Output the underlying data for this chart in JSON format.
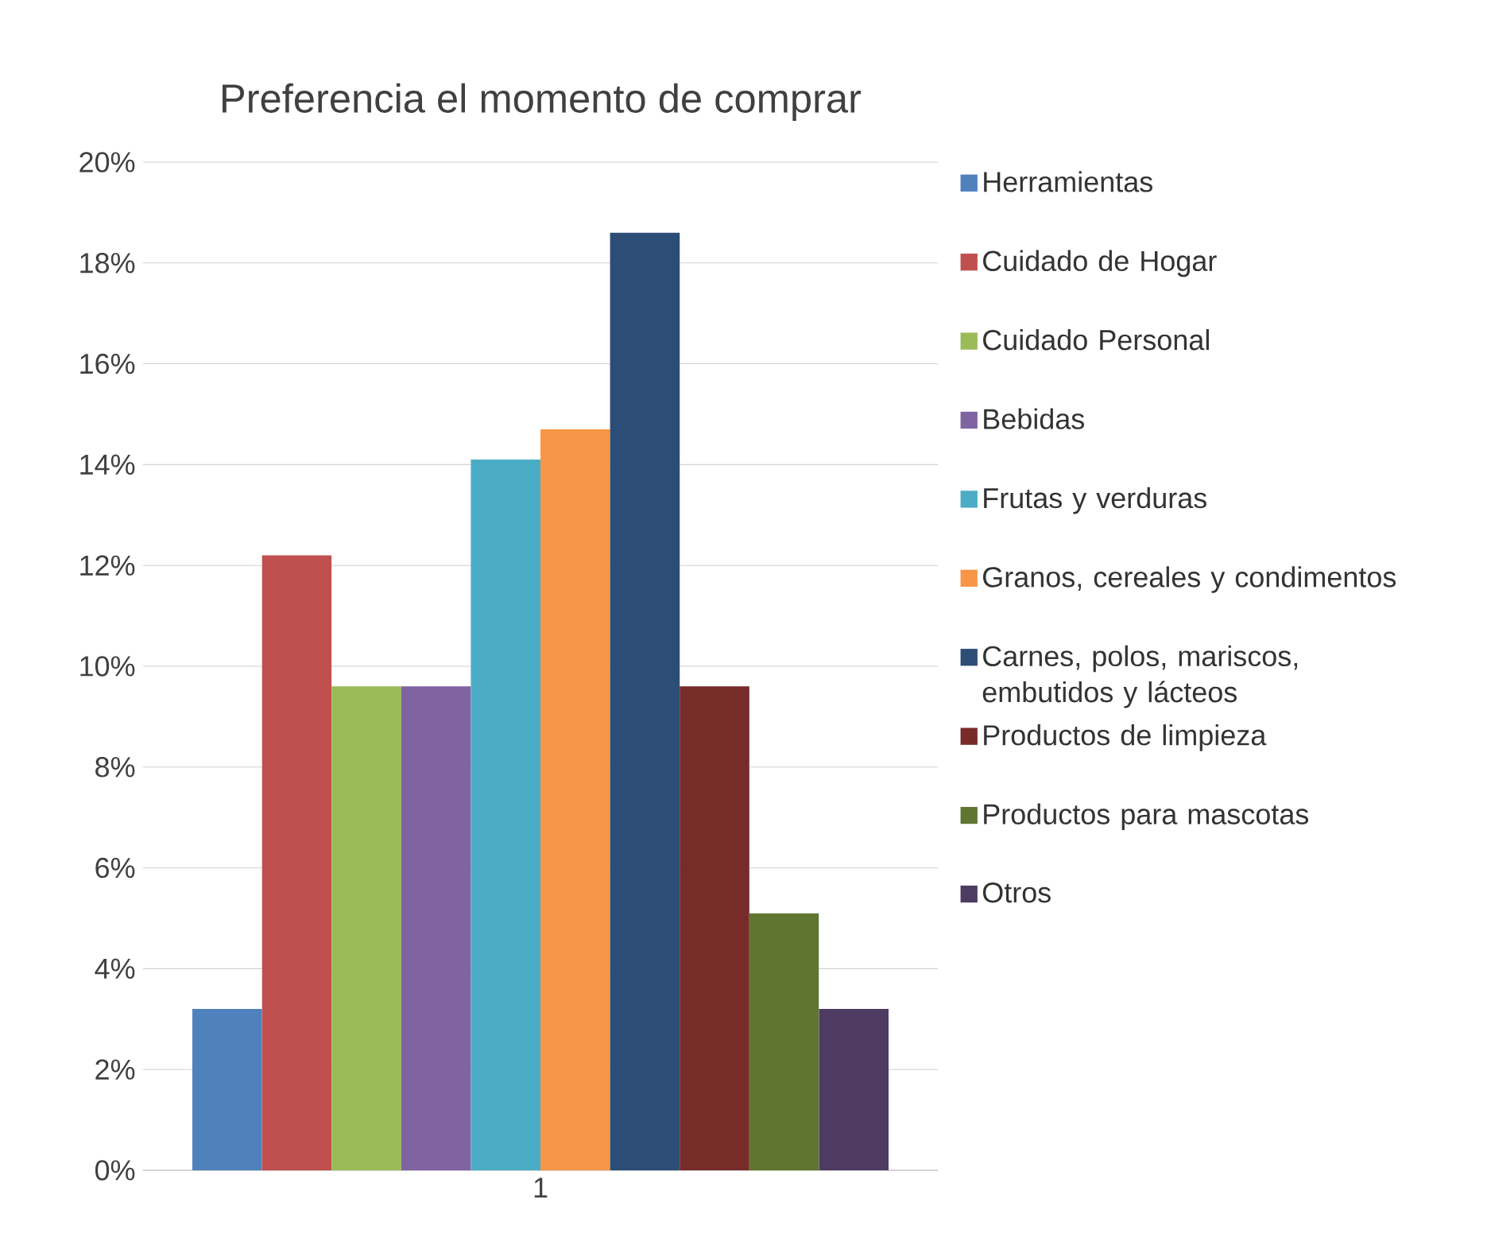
{
  "chart_data": {
    "type": "bar",
    "title": "Preferencia el momento de comprar",
    "categories": [
      "1"
    ],
    "series": [
      {
        "name": "Herramientas",
        "color": "#4f81bd",
        "values": [
          3.2
        ]
      },
      {
        "name": "Cuidado de Hogar",
        "color": "#c0504d",
        "values": [
          12.2
        ]
      },
      {
        "name": "Cuidado Personal",
        "color": "#9bbb59",
        "values": [
          9.6
        ]
      },
      {
        "name": "Bebidas",
        "color": "#8064a2",
        "values": [
          9.6
        ]
      },
      {
        "name": "Frutas y verduras",
        "color": "#4bacc6",
        "values": [
          14.1
        ]
      },
      {
        "name": "Granos, cereales y condimentos",
        "color": "#f79646",
        "values": [
          14.7
        ]
      },
      {
        "name": "Carnes, polos, mariscos, embutidos y lácteos",
        "color": "#2c4d75",
        "values": [
          18.6
        ]
      },
      {
        "name": "Productos de limpieza",
        "color": "#772c2a",
        "values": [
          9.6
        ]
      },
      {
        "name": "Productos para mascotas",
        "color": "#5f7530",
        "values": [
          5.1
        ]
      },
      {
        "name": "Otros",
        "color": "#4d3b62",
        "values": [
          3.2
        ]
      }
    ],
    "ylim": [
      0,
      20
    ],
    "yticks": [
      {
        "value": 0,
        "label": "0%"
      },
      {
        "value": 2,
        "label": "2%"
      },
      {
        "value": 4,
        "label": "4%"
      },
      {
        "value": 6,
        "label": "6%"
      },
      {
        "value": 8,
        "label": "8%"
      },
      {
        "value": 10,
        "label": "10%"
      },
      {
        "value": 12,
        "label": "12%"
      },
      {
        "value": 14,
        "label": "14%"
      },
      {
        "value": 16,
        "label": "16%"
      },
      {
        "value": 18,
        "label": "18%"
      },
      {
        "value": 20,
        "label": "20%"
      }
    ],
    "grid": "y",
    "legend": "right"
  }
}
